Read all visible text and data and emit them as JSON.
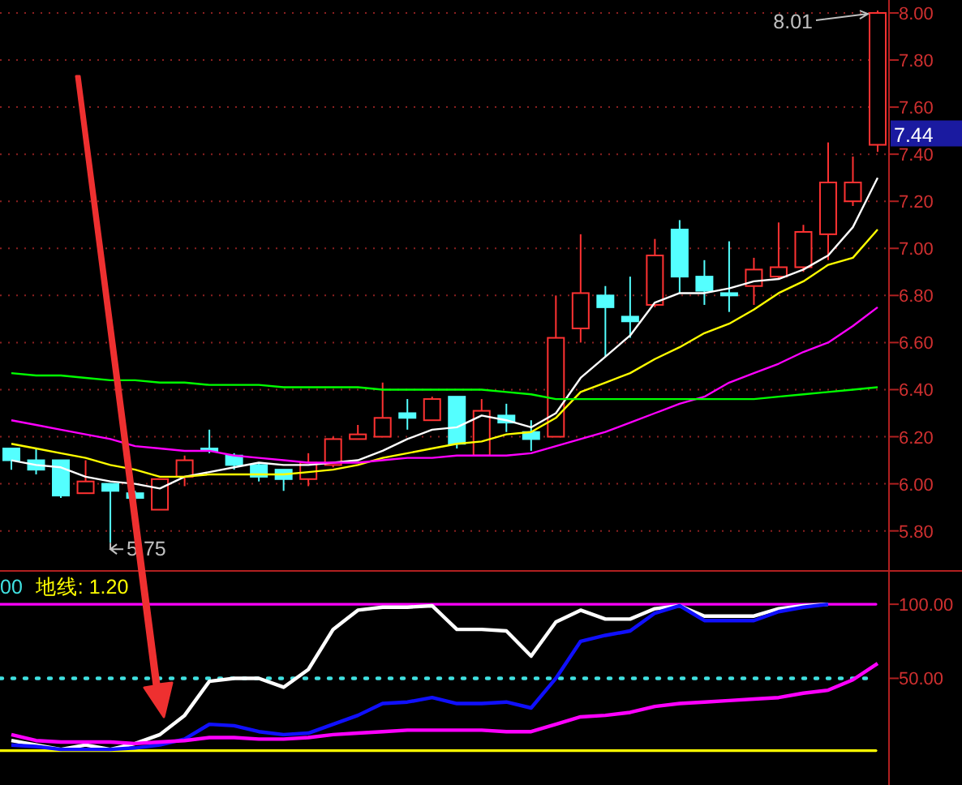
{
  "chart_data": [
    {
      "type": "candlestick",
      "categories": [
        null,
        null,
        null,
        null,
        null,
        null,
        null,
        null,
        null,
        null,
        null,
        null,
        null,
        null,
        null,
        null,
        null,
        null,
        null,
        null,
        null,
        null,
        null,
        null,
        null,
        null,
        null,
        null,
        null,
        null,
        null,
        null,
        null,
        null,
        null,
        null
      ],
      "ohlc": [
        [
          6.15,
          6.15,
          6.06,
          6.1
        ],
        [
          6.1,
          6.15,
          6.04,
          6.06
        ],
        [
          6.1,
          6.1,
          5.94,
          5.95
        ],
        [
          5.96,
          6.1,
          5.96,
          6.01
        ],
        [
          6.0,
          6.0,
          5.75,
          5.97
        ],
        [
          5.96,
          5.97,
          5.93,
          5.94
        ],
        [
          5.89,
          6.02,
          5.89,
          6.02
        ],
        [
          6.03,
          6.12,
          5.99,
          6.1
        ],
        [
          6.15,
          6.23,
          6.13,
          6.14
        ],
        [
          6.12,
          6.13,
          6.06,
          6.08
        ],
        [
          6.08,
          6.09,
          6.01,
          6.03
        ],
        [
          6.06,
          6.06,
          5.97,
          6.02
        ],
        [
          6.02,
          6.13,
          5.99,
          6.09
        ],
        [
          6.08,
          6.2,
          6.07,
          6.19
        ],
        [
          6.19,
          6.25,
          6.19,
          6.21
        ],
        [
          6.2,
          6.43,
          6.2,
          6.28
        ],
        [
          6.3,
          6.36,
          6.23,
          6.28
        ],
        [
          6.27,
          6.37,
          6.27,
          6.36
        ],
        [
          6.37,
          6.37,
          6.15,
          6.17
        ],
        [
          6.12,
          6.36,
          6.12,
          6.31
        ],
        [
          6.29,
          6.34,
          6.22,
          6.26
        ],
        [
          6.22,
          6.27,
          6.14,
          6.19
        ],
        [
          6.2,
          6.8,
          6.2,
          6.62
        ],
        [
          6.66,
          7.06,
          6.6,
          6.81
        ],
        [
          6.8,
          6.84,
          6.54,
          6.75
        ],
        [
          6.71,
          6.88,
          6.62,
          6.69
        ],
        [
          6.76,
          7.04,
          6.75,
          6.97
        ],
        [
          7.08,
          7.12,
          6.81,
          6.88
        ],
        [
          6.88,
          6.95,
          6.76,
          6.82
        ],
        [
          6.81,
          7.03,
          6.73,
          6.8
        ],
        [
          6.84,
          6.96,
          6.76,
          6.91
        ],
        [
          6.88,
          7.11,
          6.87,
          6.92
        ],
        [
          6.92,
          7.1,
          6.9,
          7.07
        ],
        [
          7.06,
          7.45,
          6.95,
          7.28
        ],
        [
          7.2,
          7.39,
          7.18,
          7.28
        ],
        [
          7.44,
          8.01,
          7.41,
          8.0
        ]
      ],
      "colors": [
        "#54ffff",
        "#54ffff",
        "#54ffff",
        "#ff3232",
        "#54ffff",
        "#54ffff",
        "#ff3232",
        "#ff3232",
        "#54ffff",
        "#54ffff",
        "#54ffff",
        "#54ffff",
        "#ff3232",
        "#ff3232",
        "#ff3232",
        "#ff3232",
        "#54ffff",
        "#ff3232",
        "#54ffff",
        "#ff3232",
        "#54ffff",
        "#54ffff",
        "#ff3232",
        "#ff3232",
        "#54ffff",
        "#54ffff",
        "#ff3232",
        "#54ffff",
        "#54ffff",
        "#54ffff",
        "#ff3232",
        "#ff3232",
        "#ff3232",
        "#ff3232",
        "#ff3232",
        "#ff3232"
      ],
      "series": [
        {
          "type": "line",
          "color": "#ffffff",
          "values": [
            6.1,
            6.08,
            6.07,
            6.03,
            6.01,
            6.0,
            5.98,
            6.03,
            6.05,
            6.07,
            6.09,
            6.08,
            6.08,
            6.09,
            6.1,
            6.14,
            6.19,
            6.23,
            6.24,
            6.29,
            6.27,
            6.24,
            6.3,
            6.45,
            6.54,
            6.63,
            6.77,
            6.81,
            6.81,
            6.83,
            6.86,
            6.87,
            6.91,
            6.97,
            7.09,
            7.3
          ]
        },
        {
          "type": "line",
          "color": "#ffff00",
          "values": [
            6.17,
            6.15,
            6.13,
            6.11,
            6.08,
            6.06,
            6.03,
            6.03,
            6.04,
            6.04,
            6.04,
            6.04,
            6.05,
            6.06,
            6.08,
            6.11,
            6.13,
            6.15,
            6.17,
            6.18,
            6.21,
            6.22,
            6.28,
            6.39,
            6.43,
            6.47,
            6.53,
            6.58,
            6.64,
            6.68,
            6.74,
            6.81,
            6.86,
            6.93,
            6.96,
            7.08
          ]
        },
        {
          "type": "line",
          "color": "#ff00ff",
          "values": [
            6.27,
            6.25,
            6.23,
            6.21,
            6.19,
            6.16,
            6.15,
            6.14,
            6.14,
            6.12,
            6.11,
            6.1,
            6.09,
            6.09,
            6.09,
            6.1,
            6.11,
            6.11,
            6.12,
            6.12,
            6.12,
            6.13,
            6.16,
            6.19,
            6.22,
            6.26,
            6.3,
            6.34,
            6.37,
            6.43,
            6.47,
            6.51,
            6.56,
            6.6,
            6.67,
            6.75
          ]
        },
        {
          "type": "line",
          "color": "#00ff00",
          "values": [
            6.47,
            6.46,
            6.46,
            6.45,
            6.44,
            6.44,
            6.43,
            6.43,
            6.42,
            6.42,
            6.42,
            6.41,
            6.41,
            6.41,
            6.41,
            6.4,
            6.4,
            6.4,
            6.4,
            6.4,
            6.39,
            6.38,
            6.36,
            6.36,
            6.36,
            6.36,
            6.36,
            6.36,
            6.36,
            6.36,
            6.36,
            6.37,
            6.38,
            6.39,
            6.4,
            6.41
          ]
        }
      ],
      "ylim": [
        5.63,
        8.055
      ],
      "yticks": [
        {
          "value": 5.8,
          "label": "5.80"
        },
        {
          "value": 6,
          "label": "6.00"
        },
        {
          "value": 6.2,
          "label": "6.20"
        },
        {
          "value": 6.4,
          "label": "6.40"
        },
        {
          "value": 6.6,
          "label": "6.60"
        },
        {
          "value": 6.8,
          "label": "6.80"
        },
        {
          "value": 7,
          "label": "7.00"
        },
        {
          "value": 7.2,
          "label": "7.20"
        },
        {
          "value": 7.4,
          "label": "7.40"
        },
        {
          "value": 7.6,
          "label": "7.60"
        },
        {
          "value": 7.8,
          "label": "7.80"
        },
        {
          "value": 8,
          "label": "8.00"
        }
      ],
      "grid": "y",
      "tick_labels": "y",
      "annotations": [
        "8.01",
        "5.75",
        "7.44"
      ]
    },
    {
      "type": "line",
      "categories": [
        null,
        null,
        null,
        null,
        null,
        null,
        null,
        null,
        null,
        null,
        null,
        null,
        null,
        null,
        null,
        null,
        null,
        null,
        null,
        null,
        null,
        null,
        null,
        null,
        null,
        null,
        null,
        null,
        null,
        null,
        null,
        null,
        null,
        null,
        null,
        null
      ],
      "series": [
        {
          "color": "#ffffff",
          "values": [
            8,
            5,
            2,
            5,
            2,
            6,
            12,
            25,
            48,
            50,
            50,
            44,
            56,
            83,
            96,
            98,
            98,
            99,
            83,
            83,
            82,
            65,
            88,
            96,
            90,
            90,
            97,
            99,
            92,
            92,
            92,
            97,
            99,
            100,
            null,
            null
          ]
        },
        {
          "color": "#1010ff",
          "values": [
            5,
            4,
            2,
            2,
            2,
            3,
            5,
            9,
            19,
            18,
            14,
            12,
            13,
            19,
            25,
            33,
            34,
            37,
            33,
            33,
            34,
            30,
            50,
            75,
            79,
            82,
            94,
            99,
            89,
            89,
            89,
            95,
            98,
            100,
            null,
            null
          ]
        },
        {
          "color": "#ff00ff",
          "values": [
            12,
            8,
            7,
            7,
            7,
            6,
            7,
            8,
            10,
            10,
            9,
            9,
            10,
            12,
            13,
            14,
            15,
            15,
            15,
            15,
            14,
            14,
            19,
            24,
            25,
            27,
            31,
            33,
            34,
            35,
            36,
            37,
            40,
            42,
            49,
            60
          ]
        }
      ],
      "ylim": [
        -22,
        122.5
      ],
      "yticks": [
        {
          "value": 50,
          "label": "50.00"
        },
        {
          "value": 100,
          "label": "100.00"
        }
      ],
      "tick_labels": "y",
      "annotations": [
        "00"
      ],
      "ref_lines": [
        {
          "axis": "y",
          "value": 100,
          "color": "#ff00ff",
          "line_style": "solid"
        },
        {
          "axis": "y",
          "value": 50,
          "color": "#40e0e0",
          "line_style": "dotted"
        },
        {
          "axis": "y",
          "value": 1.2,
          "color": "#ffff00",
          "line_style": "solid",
          "label": "地线: 1.20"
        }
      ]
    }
  ]
}
